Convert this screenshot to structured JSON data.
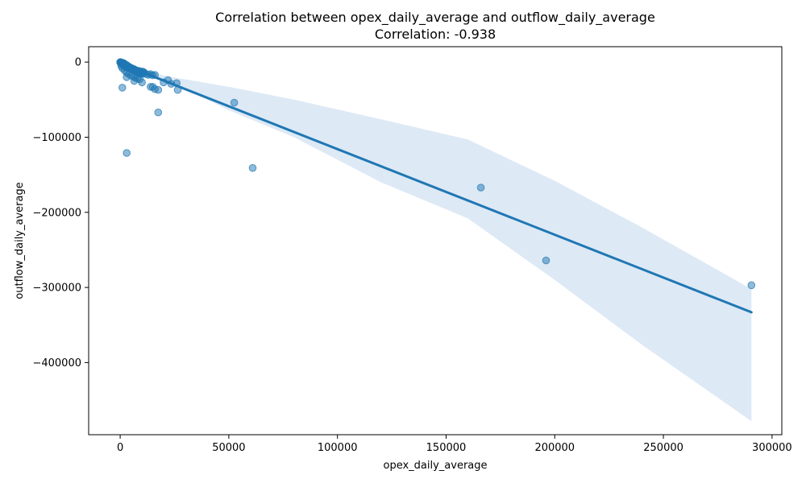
{
  "chart_data": {
    "type": "scatter",
    "title": "Correlation between opex_daily_average and outflow_daily_average",
    "subtitle": "Correlation: -0.938",
    "xlabel": "opex_daily_average",
    "ylabel": "outflow_daily_average",
    "xlim": [
      -14500,
      304500
    ],
    "ylim": [
      -496000,
      20500
    ],
    "x_ticks": [
      0,
      50000,
      100000,
      150000,
      200000,
      250000,
      300000
    ],
    "x_tick_labels": [
      "0",
      "50000",
      "100000",
      "150000",
      "200000",
      "250000",
      "300000"
    ],
    "y_ticks": [
      0,
      -100000,
      -200000,
      -300000,
      -400000
    ],
    "y_tick_labels": [
      "0",
      "−100000",
      "−200000",
      "−300000",
      "−400000"
    ],
    "grid": false,
    "colors": {
      "points": "#1f77b4",
      "line": "#1f77b4",
      "band": "#c6dbef"
    },
    "points": [
      [
        0,
        0
      ],
      [
        100,
        -500
      ],
      [
        200,
        -1000
      ],
      [
        300,
        -300
      ],
      [
        400,
        -1500
      ],
      [
        500,
        -800
      ],
      [
        600,
        -2000
      ],
      [
        700,
        -600
      ],
      [
        800,
        -2500
      ],
      [
        900,
        -1200
      ],
      [
        1000,
        -3000
      ],
      [
        1100,
        -900
      ],
      [
        1200,
        -1800
      ],
      [
        1300,
        -3500
      ],
      [
        1400,
        -2200
      ],
      [
        1500,
        -4000
      ],
      [
        1600,
        -1400
      ],
      [
        1700,
        -2800
      ],
      [
        1800,
        -4500
      ],
      [
        1900,
        -3200
      ],
      [
        2000,
        -5000
      ],
      [
        2100,
        -2600
      ],
      [
        2200,
        -3800
      ],
      [
        2300,
        -5500
      ],
      [
        2400,
        -4200
      ],
      [
        2500,
        -6000
      ],
      [
        2600,
        -3400
      ],
      [
        2700,
        -4800
      ],
      [
        2800,
        -6500
      ],
      [
        2900,
        -5200
      ],
      [
        3000,
        -7000
      ],
      [
        3200,
        -4400
      ],
      [
        3400,
        -6200
      ],
      [
        3600,
        -7500
      ],
      [
        3800,
        -5800
      ],
      [
        4000,
        -8000
      ],
      [
        4200,
        -6600
      ],
      [
        4400,
        -8500
      ],
      [
        4600,
        -7200
      ],
      [
        4800,
        -9000
      ],
      [
        5000,
        -7800
      ],
      [
        5300,
        -9500
      ],
      [
        5600,
        -8400
      ],
      [
        5900,
        -10000
      ],
      [
        6200,
        -9200
      ],
      [
        6500,
        -11000
      ],
      [
        6800,
        -10200
      ],
      [
        7100,
        -12000
      ],
      [
        7400,
        -11000
      ],
      [
        7700,
        -13000
      ],
      [
        8000,
        -12000
      ],
      [
        8300,
        -14000
      ],
      [
        8600,
        -11500
      ],
      [
        8900,
        -15000
      ],
      [
        9200,
        -13500
      ],
      [
        9500,
        -16000
      ],
      [
        9800,
        -14500
      ],
      [
        10100,
        -12500
      ],
      [
        10400,
        -15500
      ],
      [
        10700,
        -13000
      ],
      [
        11000,
        -14000
      ],
      [
        12000,
        -16000
      ],
      [
        13000,
        -17000
      ],
      [
        14000,
        -16000
      ],
      [
        15000,
        -17500
      ],
      [
        16000,
        -17000
      ],
      [
        500,
        -5000
      ],
      [
        1000,
        -8000
      ],
      [
        2000,
        -11000
      ],
      [
        3000,
        -14000
      ],
      [
        3000,
        -20000
      ],
      [
        4000,
        -16000
      ],
      [
        5000,
        -18000
      ],
      [
        6000,
        -19000
      ],
      [
        6500,
        -25000
      ],
      [
        7000,
        -21000
      ],
      [
        8000,
        -22000
      ],
      [
        9000,
        -23000
      ],
      [
        10000,
        -27000
      ],
      [
        1000,
        -34000
      ],
      [
        14000,
        -33000
      ],
      [
        15000,
        -33000
      ],
      [
        16000,
        -36000
      ],
      [
        17500,
        -37000
      ],
      [
        20000,
        -27000
      ],
      [
        22000,
        -24000
      ],
      [
        23500,
        -29000
      ],
      [
        26000,
        -28000
      ],
      [
        26500,
        -37000
      ],
      [
        17500,
        -67000
      ],
      [
        3000,
        -121000
      ],
      [
        52500,
        -54000
      ],
      [
        61000,
        -141000
      ],
      [
        166000,
        -167000
      ],
      [
        196000,
        -264000
      ],
      [
        290500,
        -297000
      ]
    ],
    "regression": {
      "x": [
        0,
        290500
      ],
      "y": [
        -1800,
        -333000
      ]
    },
    "confidence_band": {
      "x": [
        0,
        10000,
        20000,
        30000,
        50000,
        80000,
        120000,
        160000,
        200000,
        240000,
        290500
      ],
      "upper": [
        600,
        -8500,
        -18000,
        -23000,
        -33000,
        -50000,
        -76000,
        -103000,
        -158000,
        -220000,
        -302000
      ],
      "lower": [
        -4200,
        -14000,
        -24000,
        -36000,
        -64000,
        -100000,
        -160000,
        -208000,
        -290000,
        -376000,
        -478000
      ]
    }
  }
}
